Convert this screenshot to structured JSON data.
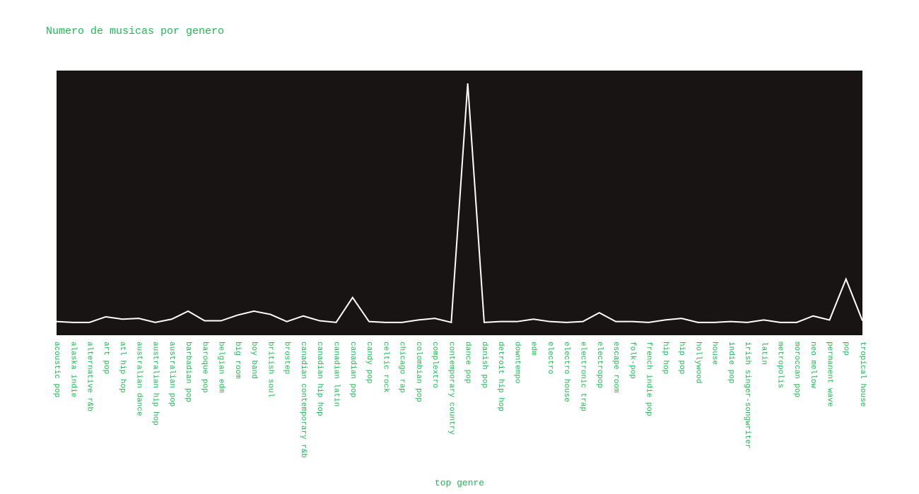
{
  "chart_data": {
    "type": "line",
    "title": "Numero de musicas por genero",
    "xlabel": "top genre",
    "ylabel": "",
    "ylim": [
      0,
      330
    ],
    "grid": false,
    "colors": {
      "background": "#ffffff",
      "plot_background": "#191414",
      "line": "#ffffff",
      "text": "#1db954"
    },
    "categories": [
      "acoustic pop",
      "alaska indie",
      "alternative r&b",
      "art pop",
      "atl hip hop",
      "australian dance",
      "australian hip hop",
      "australian pop",
      "barbadian pop",
      "baroque pop",
      "belgian edm",
      "big room",
      "boy band",
      "british soul",
      "brostep",
      "canadian contemporary r&b",
      "canadian hip hop",
      "canadian latin",
      "canadian pop",
      "candy pop",
      "celtic rock",
      "chicago rap",
      "colombian pop",
      "complextro",
      "contemporary country",
      "dance pop",
      "danish pop",
      "detroit hip hop",
      "downtempo",
      "edm",
      "electro",
      "electro house",
      "electronic trap",
      "electropop",
      "escape room",
      "folk-pop",
      "french indie pop",
      "hip hop",
      "hip pop",
      "hollywood",
      "house",
      "indie pop",
      "irish singer-songwriter",
      "latin",
      "metropolis",
      "moroccan pop",
      "neo mellow",
      "permanent wave",
      "pop",
      "tropical house"
    ],
    "series": [
      {
        "values": [
          17,
          16,
          16,
          23,
          20,
          21,
          16,
          20,
          30,
          18,
          18,
          25,
          30,
          26,
          17,
          24,
          18,
          16,
          47,
          17,
          16,
          16,
          19,
          21,
          16,
          314,
          16,
          17,
          17,
          20,
          17,
          16,
          17,
          28,
          17,
          17,
          16,
          19,
          21,
          16,
          16,
          17,
          16,
          19,
          16,
          16,
          24,
          19,
          70,
          18
        ]
      }
    ]
  }
}
